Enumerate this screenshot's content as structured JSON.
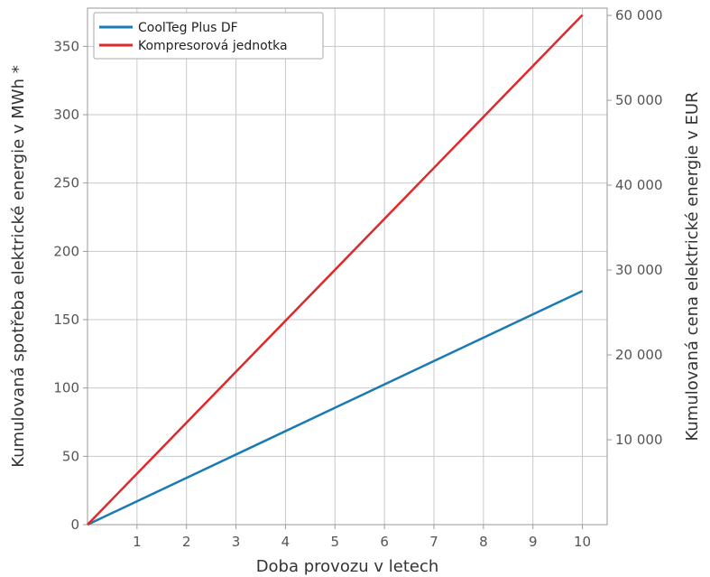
{
  "chart_data": {
    "type": "line",
    "xlabel": "Doba provozu v letech",
    "ylabel": "Kumulovaná spotřeba elektrické energie v MWh *",
    "y2label": "Kumulovaná cena elektrické energie v EUR",
    "xlim": [
      0,
      10.5
    ],
    "ylim": [
      0,
      378
    ],
    "y2lim": [
      0,
      60860
    ],
    "x_ticks": [
      1,
      2,
      3,
      4,
      5,
      6,
      7,
      8,
      9,
      10
    ],
    "y_ticks": [
      0,
      50,
      100,
      150,
      200,
      250,
      300,
      350
    ],
    "y2_ticks": [
      10000,
      20000,
      30000,
      40000,
      50000,
      60000
    ],
    "y2_tick_labels": [
      "10 000",
      "20 000",
      "30 000",
      "40 000",
      "50 000",
      "60 000"
    ],
    "grid": true,
    "legend_position": "top-left",
    "series": [
      {
        "name": "CoolTeg Plus DF",
        "color": "#1a7ab5",
        "x": [
          0,
          10
        ],
        "y": [
          0,
          171
        ]
      },
      {
        "name": "Kompresorová jednotka",
        "color": "#e0282a",
        "x": [
          0,
          10
        ],
        "y": [
          0,
          373
        ]
      }
    ]
  }
}
